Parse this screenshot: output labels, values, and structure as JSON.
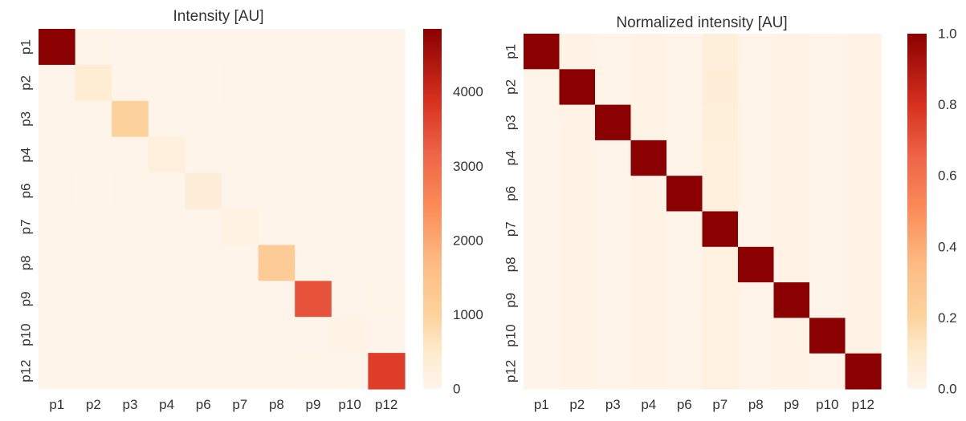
{
  "chart_data": [
    {
      "type": "heatmap",
      "title": "Intensity [AU]",
      "xlabel": "",
      "ylabel": "",
      "x_categories": [
        "p1",
        "p2",
        "p3",
        "p4",
        "p6",
        "p7",
        "p8",
        "p9",
        "p10",
        "p12"
      ],
      "y_categories": [
        "p1",
        "p2",
        "p3",
        "p4",
        "p6",
        "p7",
        "p8",
        "p9",
        "p10",
        "p12"
      ],
      "values": [
        [
          4850,
          45,
          35,
          30,
          28,
          30,
          35,
          40,
          30,
          35
        ],
        [
          40,
          420,
          30,
          25,
          20,
          25,
          30,
          35,
          25,
          30
        ],
        [
          35,
          30,
          1050,
          30,
          25,
          25,
          30,
          40,
          30,
          35
        ],
        [
          30,
          25,
          30,
          220,
          25,
          25,
          30,
          35,
          25,
          30
        ],
        [
          28,
          20,
          25,
          25,
          320,
          25,
          30,
          35,
          25,
          30
        ],
        [
          30,
          25,
          25,
          25,
          25,
          130,
          30,
          35,
          25,
          30
        ],
        [
          35,
          30,
          30,
          30,
          30,
          30,
          1200,
          40,
          35,
          40
        ],
        [
          40,
          35,
          40,
          35,
          35,
          35,
          40,
          3400,
          40,
          45
        ],
        [
          30,
          25,
          30,
          25,
          25,
          25,
          35,
          40,
          110,
          35
        ],
        [
          35,
          30,
          35,
          30,
          30,
          30,
          40,
          45,
          35,
          3700
        ]
      ],
      "colorbar": {
        "min": 0,
        "max": 4850,
        "ticks": [
          0,
          1000,
          2000,
          3000,
          4000
        ]
      },
      "colormap": "OrRd",
      "grid": false
    },
    {
      "type": "heatmap",
      "title": "Normalized intensity [AU]",
      "xlabel": "",
      "ylabel": "",
      "x_categories": [
        "p1",
        "p2",
        "p3",
        "p4",
        "p6",
        "p7",
        "p8",
        "p9",
        "p10",
        "p12"
      ],
      "y_categories": [
        "p1",
        "p2",
        "p3",
        "p4",
        "p6",
        "p7",
        "p8",
        "p9",
        "p10",
        "p12"
      ],
      "values": [
        [
          1.0,
          0.02,
          0.015,
          0.02,
          0.015,
          0.06,
          0.015,
          0.02,
          0.015,
          0.02
        ],
        [
          0.01,
          1.0,
          0.015,
          0.02,
          0.015,
          0.07,
          0.015,
          0.02,
          0.015,
          0.02
        ],
        [
          0.01,
          0.02,
          1.0,
          0.02,
          0.015,
          0.06,
          0.015,
          0.02,
          0.015,
          0.02
        ],
        [
          0.01,
          0.02,
          0.015,
          1.0,
          0.015,
          0.05,
          0.015,
          0.02,
          0.015,
          0.02
        ],
        [
          0.01,
          0.02,
          0.015,
          0.02,
          1.0,
          0.05,
          0.015,
          0.02,
          0.015,
          0.02
        ],
        [
          0.01,
          0.02,
          0.015,
          0.02,
          0.015,
          1.0,
          0.015,
          0.02,
          0.015,
          0.02
        ],
        [
          0.01,
          0.02,
          0.015,
          0.02,
          0.015,
          0.04,
          1.0,
          0.02,
          0.015,
          0.02
        ],
        [
          0.01,
          0.02,
          0.015,
          0.02,
          0.015,
          0.04,
          0.015,
          1.0,
          0.015,
          0.02
        ],
        [
          0.01,
          0.02,
          0.015,
          0.02,
          0.015,
          0.04,
          0.015,
          0.02,
          1.0,
          0.02
        ],
        [
          0.01,
          0.02,
          0.015,
          0.02,
          0.015,
          0.04,
          0.015,
          0.02,
          0.015,
          1.0
        ]
      ],
      "colorbar": {
        "min": 0.0,
        "max": 1.0,
        "ticks": [
          "0.0",
          "0.2",
          "0.4",
          "0.6",
          "0.8",
          "1.0"
        ]
      },
      "colormap": "OrRd",
      "grid": false
    }
  ]
}
